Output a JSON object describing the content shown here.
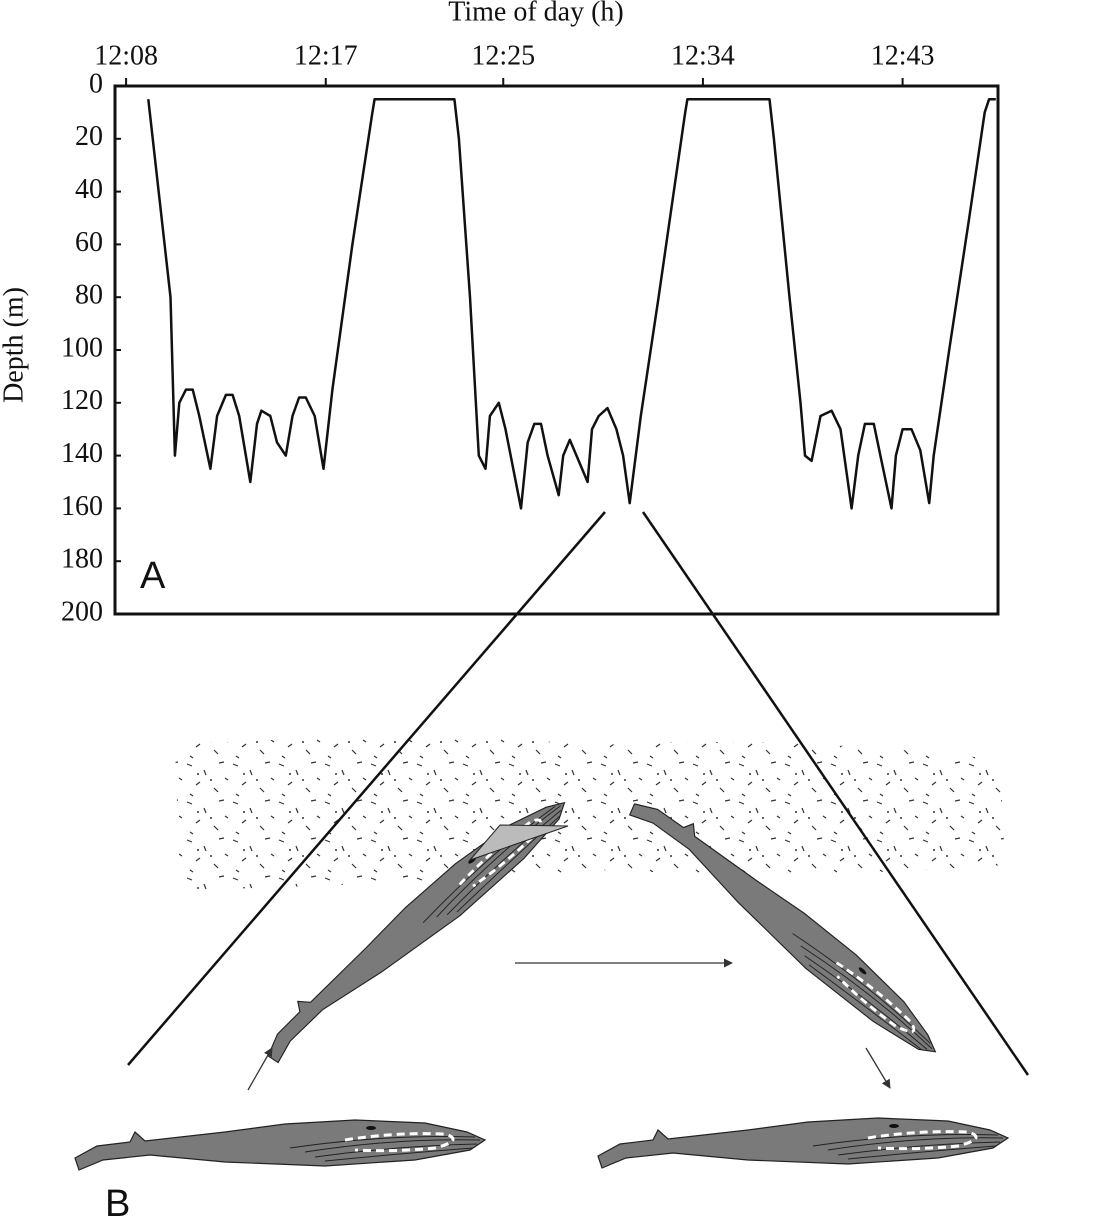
{
  "chart_data": {
    "type": "line",
    "x_label": "Time of day (h)",
    "y_label": "Depth (m)",
    "panel_labels": [
      "A",
      "B"
    ],
    "color": "#111111",
    "xlim": [
      727.5,
      767.3
    ],
    "xticks": [
      {
        "value": 728,
        "label": "12:08"
      },
      {
        "value": 737,
        "label": "12:17"
      },
      {
        "value": 745,
        "label": "12:25"
      },
      {
        "value": 754,
        "label": "12:34"
      },
      {
        "value": 763,
        "label": "12:43"
      }
    ],
    "ylim": [
      0,
      200
    ],
    "y_inverted": true,
    "yticks": [
      0,
      20,
      40,
      60,
      80,
      100,
      120,
      140,
      160,
      180,
      200
    ],
    "x": [
      729.0,
      730.0,
      730.2,
      730.4,
      730.7,
      731.0,
      731.3,
      731.8,
      732.1,
      732.5,
      732.8,
      733.1,
      733.6,
      733.9,
      734.1,
      734.5,
      734.8,
      735.2,
      735.5,
      735.8,
      736.1,
      736.5,
      736.9,
      737.3,
      738.2,
      739.1,
      739.2,
      742.8,
      743.0,
      743.5,
      743.9,
      744.2,
      744.4,
      744.8,
      745.1,
      745.8,
      746.1,
      746.4,
      746.7,
      747.0,
      747.5,
      747.7,
      748.0,
      748.3,
      748.8,
      749.0,
      749.3,
      749.7,
      750.1,
      750.4,
      750.7,
      751.2,
      752.0,
      753.2,
      753.3,
      757.0,
      757.2,
      757.9,
      758.4,
      758.6,
      758.9,
      759.3,
      759.8,
      760.2,
      760.7,
      761.0,
      761.3,
      761.7,
      762.0,
      762.5,
      762.7,
      763.0,
      763.4,
      763.8,
      764.2,
      764.4,
      765.1,
      766.0,
      766.7,
      766.9,
      767.2
    ],
    "values": [
      5,
      80,
      140,
      120,
      115,
      115,
      125,
      145,
      125,
      117,
      117,
      125,
      150,
      128,
      123,
      125,
      135,
      140,
      125,
      118,
      118,
      125,
      145,
      115,
      60,
      10,
      5,
      5,
      20,
      80,
      140,
      145,
      125,
      120,
      130,
      160,
      135,
      128,
      128,
      140,
      155,
      140,
      134,
      140,
      150,
      130,
      125,
      122,
      130,
      140,
      158,
      125,
      80,
      10,
      5,
      5,
      20,
      80,
      120,
      140,
      142,
      125,
      123,
      130,
      160,
      140,
      128,
      128,
      140,
      160,
      140,
      130,
      130,
      138,
      158,
      140,
      100,
      50,
      10,
      5,
      5
    ]
  }
}
